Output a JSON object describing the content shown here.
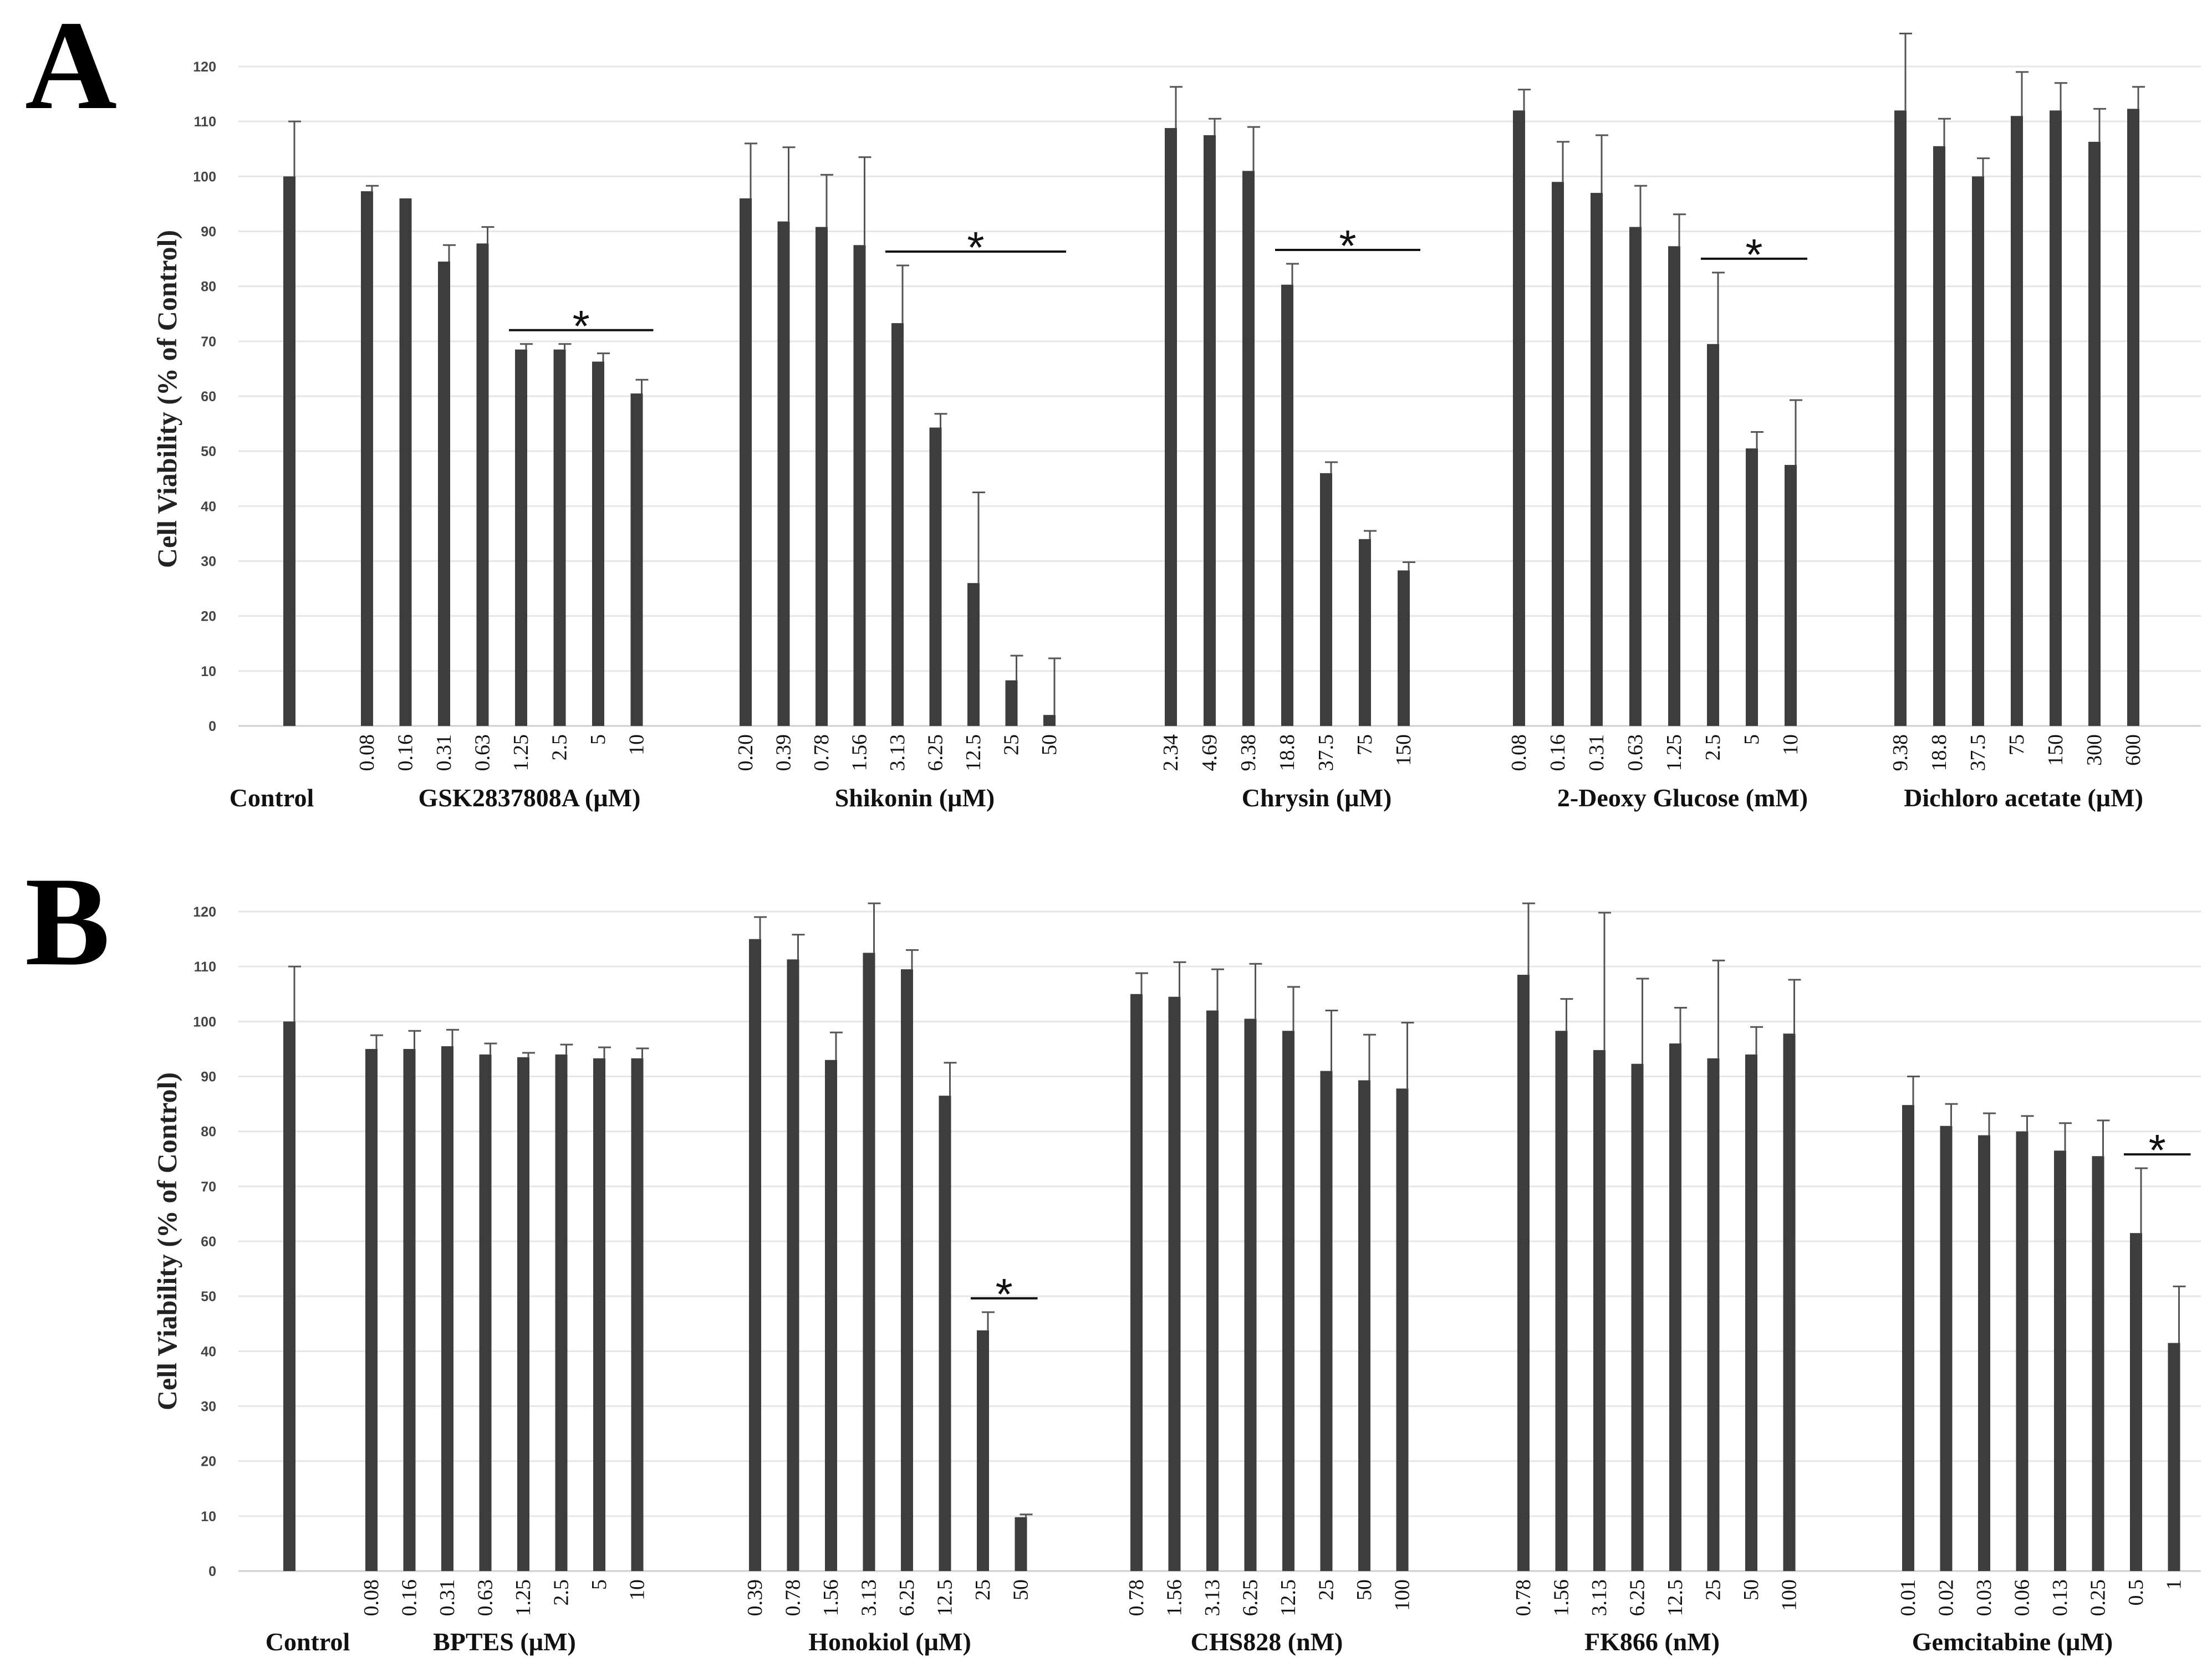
{
  "chart_data": [
    {
      "type": "bar",
      "panel": "A",
      "ylabel": "Cell Viability (% of Control)",
      "ylim": [
        0,
        120
      ],
      "yticks": [
        0,
        10,
        20,
        30,
        40,
        50,
        60,
        70,
        80,
        90,
        100,
        110,
        120
      ],
      "control": {
        "label": "Control",
        "value": 100,
        "error": 10
      },
      "groups": [
        {
          "name": "GSK2837808A (µM)",
          "categories": [
            "0.08",
            "0.16",
            "0.31",
            "0.63",
            "1.25",
            "2.5",
            "5",
            "10"
          ],
          "values": [
            97.3,
            96,
            84.5,
            87.8,
            68.5,
            68.5,
            66.3,
            60.5
          ],
          "errors": [
            1,
            0,
            3,
            3,
            1,
            1,
            1.5,
            2.5
          ],
          "significance": {
            "marker": "*",
            "from": 4,
            "to": 7
          }
        },
        {
          "name": "Shikonin (µM)",
          "categories": [
            "0.20",
            "0.39",
            "0.78",
            "1.56",
            "3.13",
            "6.25",
            "12.5",
            "25",
            "50"
          ],
          "values": [
            96,
            91.8,
            90.8,
            87.5,
            73.3,
            54.3,
            26,
            8.3,
            2
          ],
          "errors": [
            10,
            13.5,
            9.5,
            16,
            10.5,
            2.5,
            16.5,
            4.5,
            10.3
          ],
          "significance": {
            "marker": "*",
            "from": 4,
            "to": 8
          }
        },
        {
          "name": "Chrysin (µM)",
          "categories": [
            "2.34",
            "4.69",
            "9.38",
            "18.8",
            "37.5",
            "75",
            "150"
          ],
          "values": [
            108.8,
            107.5,
            101,
            80.3,
            46,
            34,
            28.3
          ],
          "errors": [
            7.5,
            3,
            8,
            3.8,
            2,
            1.5,
            1.5
          ],
          "significance": {
            "marker": "*",
            "from": 3,
            "to": 6
          }
        },
        {
          "name": "2-Deoxy Glucose (mM)",
          "categories": [
            "0.08",
            "0.16",
            "0.31",
            "0.63",
            "1.25",
            "2.5",
            "5",
            "10"
          ],
          "values": [
            112,
            99,
            97,
            90.8,
            87.3,
            69.5,
            50.5,
            47.5
          ],
          "errors": [
            3.8,
            7.3,
            10.5,
            7.5,
            5.8,
            13,
            3,
            11.8
          ],
          "significance": {
            "marker": "*",
            "from": 5,
            "to": 7
          }
        },
        {
          "name": "Dichloro acetate (µM)",
          "categories": [
            "9.38",
            "18.8",
            "37.5",
            "75",
            "150",
            "300",
            "600"
          ],
          "values": [
            112,
            105.5,
            100,
            111,
            112,
            106.3,
            112.3
          ],
          "errors": [
            14,
            5,
            3.3,
            8,
            5,
            6,
            4
          ],
          "significance": null
        }
      ]
    },
    {
      "type": "bar",
      "panel": "B",
      "ylabel": "Cell Viability (% of Control)",
      "ylim": [
        0,
        120
      ],
      "yticks": [
        0,
        10,
        20,
        30,
        40,
        50,
        60,
        70,
        80,
        90,
        100,
        110,
        120
      ],
      "control": {
        "label": "Control",
        "value": 100,
        "error": 10
      },
      "groups": [
        {
          "name": "BPTES (µM)",
          "categories": [
            "0.08",
            "0.16",
            "0.31",
            "0.63",
            "1.25",
            "2.5",
            "5",
            "10"
          ],
          "values": [
            95,
            95,
            95.5,
            94,
            93.5,
            94,
            93.3,
            93.3
          ],
          "errors": [
            2.5,
            3.3,
            3,
            2,
            0.8,
            1.8,
            2,
            1.8
          ],
          "significance": null
        },
        {
          "name": "Honokiol (µM)",
          "categories": [
            "0.39",
            "0.78",
            "1.56",
            "3.13",
            "6.25",
            "12.5",
            "25",
            "50"
          ],
          "values": [
            115,
            111.3,
            93,
            112.5,
            109.5,
            86.5,
            43.8,
            9.8
          ],
          "errors": [
            4,
            4.5,
            5,
            9,
            3.5,
            6,
            3.3,
            0.5
          ],
          "significance": {
            "marker": "*",
            "from": 6,
            "to": 7
          }
        },
        {
          "name": "CHS828 (nM)",
          "categories": [
            "0.78",
            "1.56",
            "3.13",
            "6.25",
            "12.5",
            "25",
            "50",
            "100"
          ],
          "values": [
            105,
            104.5,
            102,
            100.5,
            98.3,
            91,
            89.3,
            87.8
          ],
          "errors": [
            3.8,
            6.3,
            7.5,
            10,
            8,
            11,
            8.3,
            12
          ],
          "significance": null
        },
        {
          "name": "FK866 (nM)",
          "categories": [
            "0.78",
            "1.56",
            "3.13",
            "6.25",
            "12.5",
            "25",
            "50",
            "100"
          ],
          "values": [
            108.5,
            98.3,
            94.8,
            92.3,
            96,
            93.3,
            94,
            97.8
          ],
          "errors": [
            13,
            5.8,
            25,
            15.5,
            6.5,
            17.8,
            5,
            9.8
          ],
          "significance": null
        },
        {
          "name": "Gemcitabine (µM)",
          "categories": [
            "0.01",
            "0.02",
            "0.03",
            "0.06",
            "0.13",
            "0.25",
            "0.5",
            "1"
          ],
          "values": [
            84.8,
            81,
            79.3,
            80,
            76.5,
            75.5,
            61.5,
            41.5
          ],
          "errors": [
            5.2,
            4,
            4,
            2.8,
            5,
            6.5,
            11.8,
            10.3
          ],
          "significance": {
            "marker": "*",
            "from": 6,
            "to": 7
          }
        }
      ]
    }
  ]
}
